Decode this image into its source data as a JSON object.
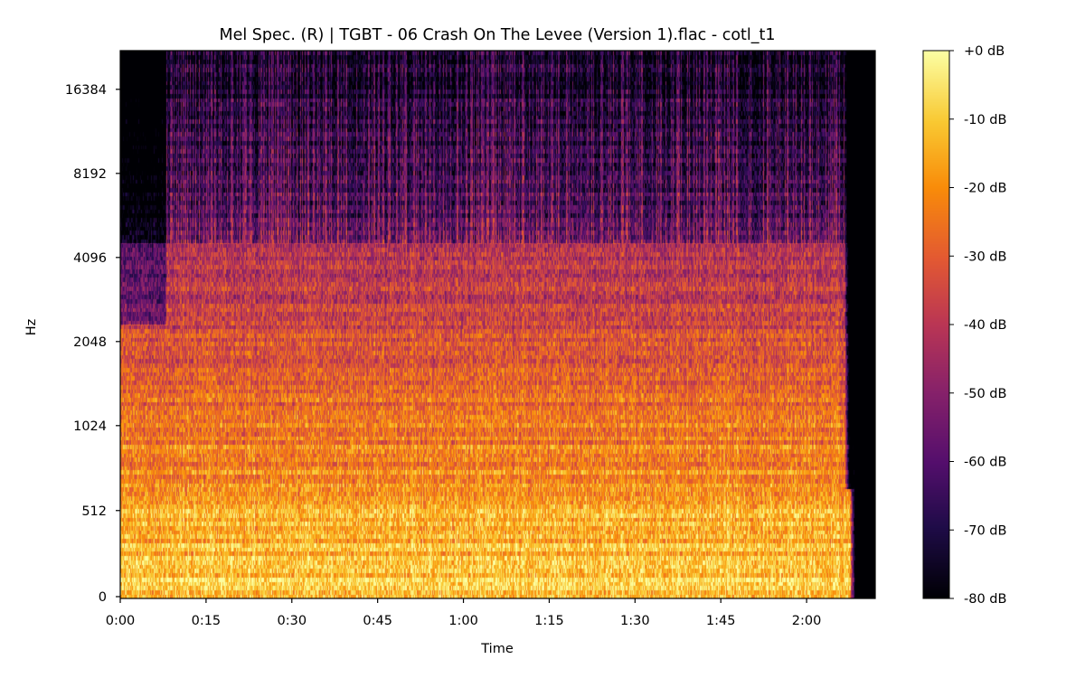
{
  "chart_data": {
    "type": "heatmap",
    "title": "Mel Spec. (R) | TGBT - 06 Crash On The Levee (Version 1).flac - cotl_t1",
    "xlabel": "Time",
    "ylabel": "Hz",
    "x_ticks": [
      "0:00",
      "0:15",
      "0:30",
      "0:45",
      "1:00",
      "1:15",
      "1:30",
      "1:45",
      "2:00"
    ],
    "x_tick_seconds": [
      0,
      15,
      30,
      45,
      60,
      75,
      90,
      105,
      120
    ],
    "xlim_seconds": [
      0,
      132
    ],
    "y_scale": "mel (linear below 1000 Hz, log2 above)",
    "y_ticks": [
      "0",
      "512",
      "1024",
      "2048",
      "4096",
      "8192",
      "16384"
    ],
    "y_tick_values": [
      0,
      512,
      1024,
      2048,
      4096,
      8192,
      16384
    ],
    "ylim_hz": [
      0,
      22050
    ],
    "colormap": "inferno",
    "colorbar": {
      "range_db": [
        -80,
        0
      ],
      "ticks": [
        "+0 dB",
        "-10 dB",
        "-20 dB",
        "-30 dB",
        "-40 dB",
        "-50 dB",
        "-60 dB",
        "-70 dB",
        "-80 dB"
      ],
      "tick_values": [
        0,
        -10,
        -20,
        -30,
        -40,
        -50,
        -60,
        -70,
        -80
      ]
    },
    "grid": false
  }
}
